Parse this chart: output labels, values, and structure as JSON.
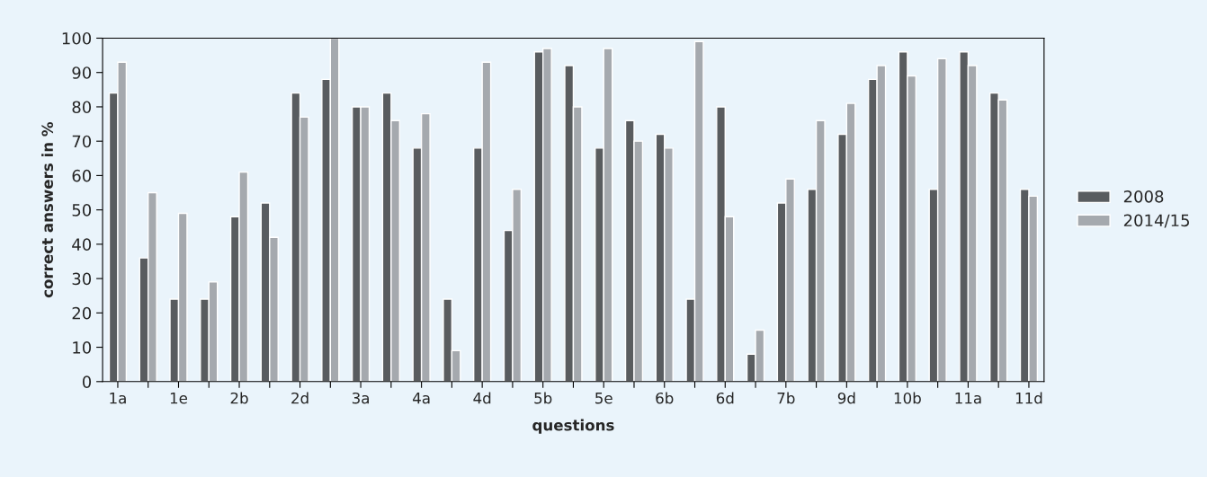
{
  "chart_data": {
    "type": "bar",
    "xlabel": "questions",
    "ylabel": "correct answers in %",
    "categories": [
      "1a",
      null,
      "1e",
      null,
      "2b",
      null,
      "2d",
      null,
      "3a",
      null,
      "4a",
      null,
      "4d",
      null,
      "5b",
      null,
      "5e",
      null,
      "6b",
      null,
      "6d",
      null,
      "7b",
      null,
      "9d",
      null,
      "10b",
      null,
      "11a",
      null,
      "11d"
    ],
    "series": [
      {
        "name": "2008",
        "color": "#595c5f",
        "values": [
          84,
          36,
          24,
          24,
          48,
          52,
          84,
          88,
          80,
          84,
          68,
          24,
          68,
          44,
          96,
          92,
          68,
          76,
          72,
          24,
          80,
          8,
          52,
          56,
          72,
          88,
          96,
          56,
          96,
          84,
          56
        ]
      },
      {
        "name": "2014/15",
        "color": "#a5a9ae",
        "values": [
          93,
          55,
          49,
          29,
          61,
          42,
          77,
          100,
          80,
          76,
          78,
          9,
          93,
          56,
          97,
          80,
          97,
          70,
          68,
          99,
          48,
          15,
          59,
          76,
          81,
          92,
          89,
          94,
          92,
          82,
          54
        ]
      }
    ],
    "ylim": [
      0,
      100
    ],
    "yticks": [
      0,
      10,
      20,
      30,
      40,
      50,
      60,
      70,
      80,
      90,
      100
    ],
    "grid": false,
    "legend": "right"
  }
}
